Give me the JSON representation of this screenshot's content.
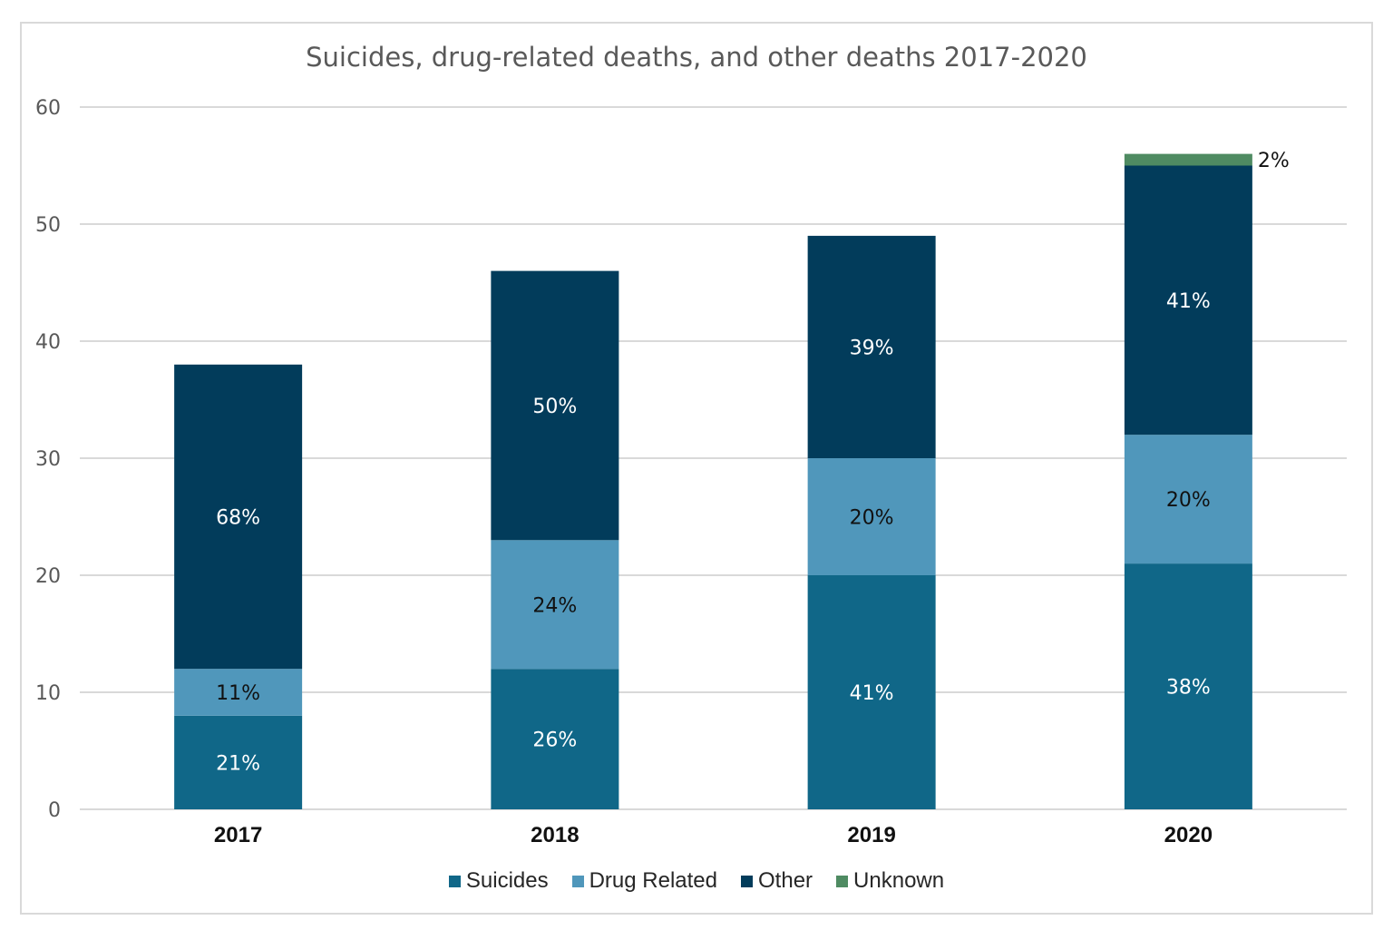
{
  "chart_data": {
    "type": "bar",
    "stacked": true,
    "title": "Suicides, drug-related deaths, and other deaths 2017-2020",
    "categories": [
      "2017",
      "2018",
      "2019",
      "2020"
    ],
    "ylim": [
      0,
      60
    ],
    "yticks": [
      0,
      10,
      20,
      30,
      40,
      50,
      60
    ],
    "grid": true,
    "legend_position": "bottom",
    "series": [
      {
        "name": "Suicides",
        "color": "#106788",
        "values": [
          8,
          12,
          20,
          21
        ],
        "labels": [
          "21%",
          "26%",
          "41%",
          "38%"
        ],
        "label_color": "#ffffff"
      },
      {
        "name": "Drug Related",
        "color": "#5097bb",
        "values": [
          4,
          11,
          10,
          11
        ],
        "labels": [
          "11%",
          "24%",
          "20%",
          "20%"
        ],
        "label_color": "#111111"
      },
      {
        "name": "Other",
        "color": "#023c5b",
        "values": [
          26,
          23,
          19,
          23
        ],
        "labels": [
          "68%",
          "50%",
          "39%",
          "41%"
        ],
        "label_color": "#ffffff"
      },
      {
        "name": "Unknown",
        "color": "#4f8b62",
        "values": [
          0,
          0,
          0,
          1
        ],
        "labels": [
          "",
          "",
          "",
          "2%"
        ],
        "label_color": "#111111",
        "label_outside": true
      }
    ]
  }
}
